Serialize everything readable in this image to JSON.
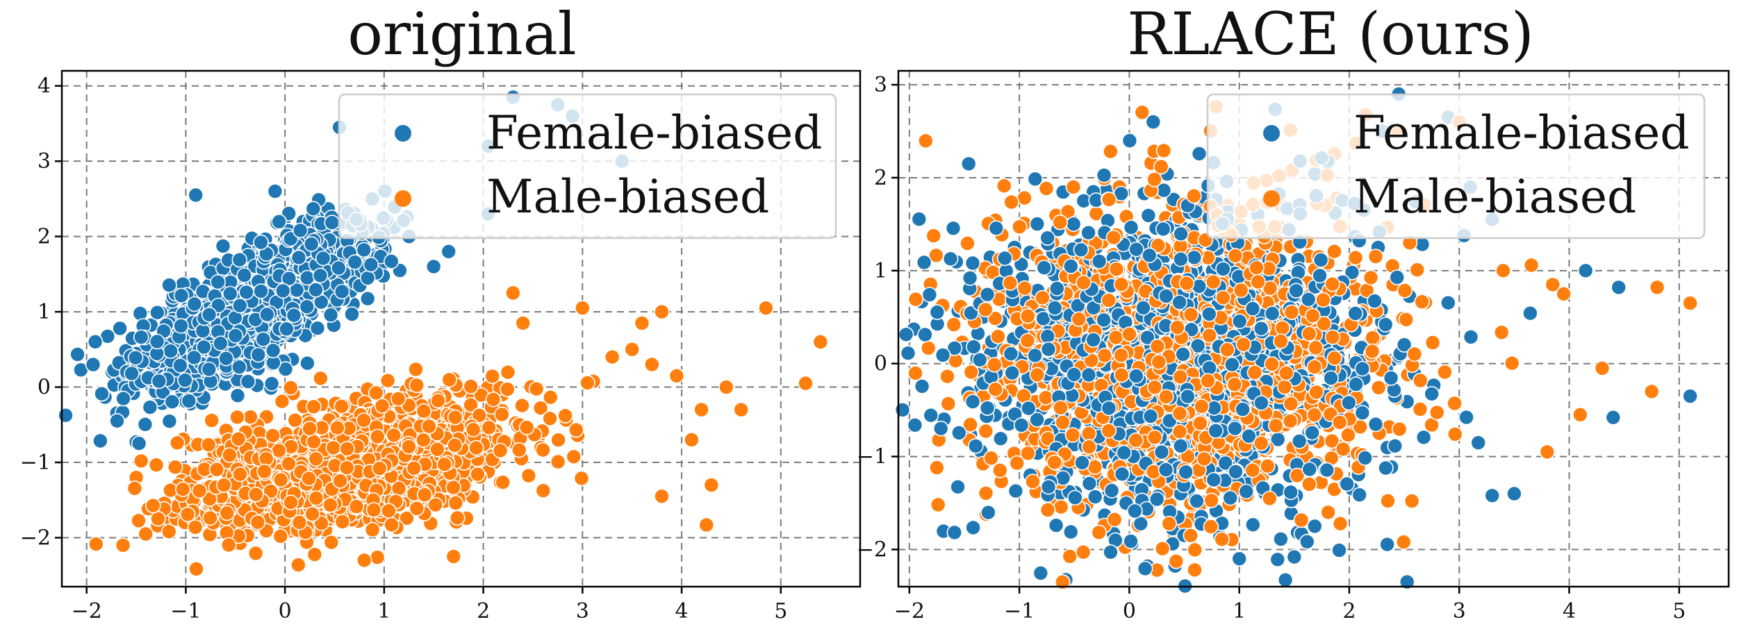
{
  "colors": {
    "female": "#1f77b4",
    "male": "#ff7f0e",
    "grid": "#7a7a7a"
  },
  "chart_data": [
    {
      "type": "scatter",
      "title": "original",
      "xlabel": "",
      "ylabel": "",
      "xlim": [
        -2.25,
        5.8
      ],
      "ylim": [
        -2.65,
        4.2
      ],
      "xticks": [
        -2,
        -1,
        0,
        1,
        2,
        3,
        4,
        5
      ],
      "yticks": [
        -2,
        -1,
        0,
        1,
        2,
        3,
        4
      ],
      "grid": true,
      "legend_position": "top-right",
      "series": [
        {
          "name": "Female-biased",
          "color": "#1f77b4",
          "cluster": {
            "cx": -0.3,
            "cy": 1.1,
            "sx": 0.6,
            "sy": 0.55,
            "rho": 0.75,
            "n": 1400
          },
          "outliers": [
            [
              -0.9,
              2.55
            ],
            [
              -0.1,
              2.6
            ],
            [
              0.55,
              3.45
            ],
            [
              1.5,
              1.6
            ],
            [
              2.05,
              3.2
            ],
            [
              2.3,
              3.85
            ],
            [
              2.75,
              3.75
            ],
            [
              2.9,
              3.6
            ],
            [
              1.65,
              1.8
            ],
            [
              3.4,
              3.0
            ],
            [
              2.05,
              2.3
            ]
          ]
        },
        {
          "name": "Male-biased",
          "color": "#ff7f0e",
          "cluster": {
            "cx": 0.6,
            "cy": -1.05,
            "sx": 0.8,
            "sy": 0.42,
            "rho": 0.45,
            "n": 1500
          },
          "outliers": [
            [
              -1.45,
              -0.98
            ],
            [
              4.85,
              1.05
            ],
            [
              5.4,
              0.6
            ],
            [
              5.25,
              0.05
            ],
            [
              4.25,
              -1.83
            ],
            [
              3.8,
              1.0
            ],
            [
              4.2,
              -0.3
            ],
            [
              4.1,
              -0.7
            ],
            [
              4.6,
              -0.3
            ],
            [
              3.5,
              0.5
            ],
            [
              4.3,
              -1.3
            ],
            [
              2.3,
              1.25
            ],
            [
              3.0,
              1.05
            ],
            [
              2.4,
              0.85
            ],
            [
              3.6,
              0.85
            ],
            [
              3.3,
              0.4
            ],
            [
              4.45,
              0.0
            ],
            [
              3.8,
              -1.45
            ],
            [
              1.7,
              -2.25
            ],
            [
              0.8,
              -2.3
            ],
            [
              3.95,
              0.15
            ],
            [
              3.7,
              0.3
            ]
          ]
        }
      ]
    },
    {
      "type": "scatter",
      "title": "RLACE (ours)",
      "xlabel": "",
      "ylabel": "",
      "xlim": [
        -2.1,
        5.45
      ],
      "ylim": [
        -2.4,
        3.15
      ],
      "xticks": [
        -2,
        -1,
        0,
        1,
        2,
        3,
        4,
        5
      ],
      "yticks": [
        -2,
        -1,
        0,
        1,
        2,
        3
      ],
      "grid": true,
      "legend_position": "top-right",
      "series": [
        {
          "name": "Female-biased",
          "color": "#1f77b4",
          "cluster": {
            "cx": 0.45,
            "cy": 0.05,
            "sx": 0.95,
            "sy": 0.85,
            "rho": 0.0,
            "n": 1300
          },
          "outliers": [
            [
              4.45,
              0.82
            ],
            [
              4.15,
              1.0
            ],
            [
              5.1,
              -0.35
            ],
            [
              4.4,
              -0.58
            ],
            [
              3.5,
              -1.4
            ],
            [
              3.3,
              -1.42
            ],
            [
              1.5,
              -2.08
            ],
            [
              1.0,
              -2.1
            ],
            [
              2.45,
              2.9
            ],
            [
              2.9,
              2.65
            ],
            [
              2.3,
              2.5
            ],
            [
              3.3,
              1.55
            ]
          ]
        },
        {
          "name": "Male-biased",
          "color": "#ff7f0e",
          "cluster": {
            "cx": 0.4,
            "cy": 0.1,
            "sx": 0.95,
            "sy": 0.85,
            "rho": 0.0,
            "n": 1300
          },
          "outliers": [
            [
              5.1,
              0.65
            ],
            [
              4.8,
              0.82
            ],
            [
              4.75,
              -0.3
            ],
            [
              3.95,
              0.75
            ],
            [
              4.1,
              -0.55
            ],
            [
              3.8,
              -0.95
            ],
            [
              3.85,
              0.85
            ],
            [
              -1.75,
              -1.12
            ],
            [
              -1.3,
              -1.62
            ],
            [
              3.0,
              2.6
            ],
            [
              2.55,
              1.3
            ],
            [
              3.4,
              1.0
            ],
            [
              4.3,
              -0.05
            ]
          ]
        }
      ]
    }
  ]
}
